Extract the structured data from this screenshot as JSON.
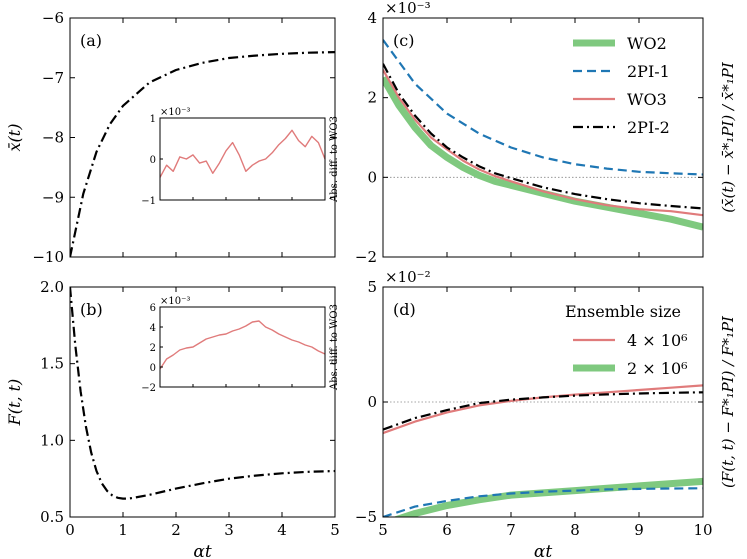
{
  "chart_data": [
    {
      "id": "a",
      "type": "line",
      "panel_label": "(a)",
      "xlabel": "αt",
      "ylabel": "x̄(t)",
      "xlim": [
        0,
        5
      ],
      "ylim": [
        -10,
        -6
      ],
      "xticks": [
        0,
        1,
        2,
        3,
        4,
        5
      ],
      "yticks": [
        -10,
        -9,
        -8,
        -7,
        -6
      ],
      "ytick_labels": [
        "−10",
        "−9",
        "−8",
        "−7",
        "−6"
      ],
      "series": [
        {
          "name": "mean",
          "color": "#000000",
          "dash": "dashdot",
          "x": [
            0,
            0.25,
            0.5,
            0.75,
            1,
            1.5,
            2,
            2.5,
            3,
            3.5,
            4,
            4.5,
            5
          ],
          "y": [
            -10,
            -8.94,
            -8.24,
            -7.78,
            -7.47,
            -7.08,
            -6.87,
            -6.75,
            -6.67,
            -6.63,
            -6.6,
            -6.58,
            -6.57
          ]
        }
      ],
      "inset": {
        "ylabel": "Abs. diff. to WO3",
        "exponent": "×10⁻³",
        "ylim": [
          -1,
          1
        ],
        "yticks": [
          -1,
          0,
          1
        ],
        "ytick_labels": [
          "−1",
          "0",
          "1"
        ],
        "color": "#e07b7b",
        "x": [
          0,
          0.2,
          0.4,
          0.6,
          0.8,
          1.0,
          1.2,
          1.4,
          1.6,
          1.8,
          2.0,
          2.2,
          2.4,
          2.6,
          2.8,
          3.0,
          3.2,
          3.4,
          3.6,
          3.8,
          4.0,
          4.2,
          4.4,
          4.6,
          4.8,
          5.0
        ],
        "y": [
          -0.45,
          -0.15,
          -0.3,
          0.05,
          0.0,
          0.1,
          -0.1,
          -0.05,
          -0.35,
          -0.1,
          0.2,
          0.4,
          0.1,
          -0.3,
          -0.15,
          -0.05,
          0.0,
          0.15,
          0.35,
          0.5,
          0.7,
          0.45,
          0.3,
          0.55,
          0.4,
          0.0
        ]
      }
    },
    {
      "id": "b",
      "type": "line",
      "panel_label": "(b)",
      "xlabel": "αt",
      "ylabel": "F(t, t)",
      "xlim": [
        0,
        5
      ],
      "ylim": [
        0.5,
        2.0
      ],
      "xticks": [
        0,
        1,
        2,
        3,
        4,
        5
      ],
      "yticks": [
        0.5,
        1.0,
        1.5,
        2.0
      ],
      "ytick_labels": [
        "0.5",
        "1.0",
        "1.5",
        "2.0"
      ],
      "series": [
        {
          "name": "F",
          "color": "#000000",
          "dash": "dashdot",
          "x": [
            0,
            0.1,
            0.2,
            0.3,
            0.4,
            0.5,
            0.6,
            0.7,
            0.8,
            0.9,
            1.0,
            1.1,
            1.2,
            1.5,
            2.0,
            2.5,
            3.0,
            3.5,
            4.0,
            4.5,
            5.0
          ],
          "y": [
            2.0,
            1.62,
            1.32,
            1.09,
            0.92,
            0.8,
            0.72,
            0.67,
            0.64,
            0.625,
            0.62,
            0.62,
            0.625,
            0.645,
            0.685,
            0.72,
            0.75,
            0.77,
            0.785,
            0.795,
            0.8
          ]
        }
      ],
      "inset": {
        "ylabel": "Abs. diff. to WO3",
        "exponent": "×10⁻³",
        "ylim": [
          -2,
          6
        ],
        "yticks": [
          -2,
          0,
          2,
          4,
          6
        ],
        "ytick_labels": [
          "−2",
          "0",
          "2",
          "4",
          "6"
        ],
        "color": "#e07b7b",
        "x": [
          0,
          0.2,
          0.4,
          0.6,
          0.8,
          1.0,
          1.2,
          1.4,
          1.6,
          1.8,
          2.0,
          2.2,
          2.4,
          2.6,
          2.8,
          3.0,
          3.2,
          3.4,
          3.6,
          3.8,
          4.0,
          4.2,
          4.4,
          4.6,
          4.8,
          5.0
        ],
        "y": [
          -0.2,
          0.8,
          1.2,
          1.7,
          1.9,
          2.0,
          2.4,
          2.8,
          3.0,
          3.2,
          3.3,
          3.6,
          3.8,
          4.1,
          4.5,
          4.6,
          4.0,
          3.7,
          3.3,
          3.0,
          2.7,
          2.5,
          2.2,
          2.0,
          1.6,
          1.3
        ]
      }
    },
    {
      "id": "c",
      "type": "line",
      "panel_label": "(c)",
      "xlabel": "αt",
      "ylabel": "(x̄(t) − x̄*₁PI) / x̄*₁PI",
      "exponent": "×10⁻³",
      "xlim": [
        5,
        10
      ],
      "ylim": [
        -2,
        4
      ],
      "xticks": [
        5,
        6,
        7,
        8,
        9,
        10
      ],
      "yticks": [
        -2,
        0,
        2,
        4
      ],
      "ytick_labels": [
        "−2",
        "0",
        "2",
        "4"
      ],
      "legend_position": "top-right",
      "series": [
        {
          "name": "WO2",
          "color": "#7fc97f",
          "dash": "solid",
          "width": 7,
          "x": [
            5.0,
            5.25,
            5.5,
            5.75,
            6.0,
            6.25,
            6.5,
            6.75,
            7.0,
            7.5,
            8.0,
            8.5,
            9.0,
            9.5,
            10.0
          ],
          "y": [
            2.5,
            1.8,
            1.25,
            0.8,
            0.5,
            0.25,
            0.05,
            -0.1,
            -0.2,
            -0.4,
            -0.6,
            -0.75,
            -0.9,
            -1.05,
            -1.25
          ]
        },
        {
          "name": "2PI-1",
          "color": "#1f77b4",
          "dash": "dashed",
          "width": 2.2,
          "x": [
            5.0,
            5.5,
            6.0,
            6.5,
            7.0,
            7.5,
            8.0,
            8.5,
            9.0,
            9.5,
            10.0
          ],
          "y": [
            3.45,
            2.35,
            1.6,
            1.1,
            0.75,
            0.5,
            0.33,
            0.22,
            0.14,
            0.1,
            0.07
          ]
        },
        {
          "name": "WO3",
          "color": "#e07b7b",
          "dash": "solid",
          "width": 2.2,
          "x": [
            5.0,
            5.25,
            5.5,
            5.75,
            6.0,
            6.25,
            6.5,
            6.75,
            7.0,
            7.5,
            8.0,
            8.5,
            9.0,
            9.5,
            10.0
          ],
          "y": [
            2.7,
            2.0,
            1.45,
            1.0,
            0.7,
            0.42,
            0.2,
            0.03,
            -0.1,
            -0.35,
            -0.55,
            -0.7,
            -0.8,
            -0.85,
            -0.95
          ]
        },
        {
          "name": "2PI-2",
          "color": "#000000",
          "dash": "dashdot",
          "width": 2.2,
          "x": [
            5.0,
            5.25,
            5.5,
            5.75,
            6.0,
            6.25,
            6.5,
            6.75,
            7.0,
            7.5,
            8.0,
            8.5,
            9.0,
            9.5,
            10.0
          ],
          "y": [
            2.85,
            2.1,
            1.55,
            1.1,
            0.75,
            0.5,
            0.28,
            0.1,
            -0.02,
            -0.25,
            -0.42,
            -0.55,
            -0.65,
            -0.72,
            -0.78
          ]
        }
      ]
    },
    {
      "id": "d",
      "type": "line",
      "panel_label": "(d)",
      "xlabel": "αt",
      "ylabel": "(F(t, t) − F*₁PI) / F*₁PI",
      "exponent": "×10⁻²",
      "xlim": [
        5,
        10
      ],
      "ylim": [
        -5,
        5
      ],
      "xticks": [
        5,
        6,
        7,
        8,
        9,
        10
      ],
      "xtick_labels": [
        "5",
        "6",
        "7",
        "8",
        "9",
        "10"
      ],
      "yticks": [
        -5,
        0,
        5
      ],
      "ytick_labels": [
        "−5",
        "0",
        "5"
      ],
      "legend_title": "Ensemble size",
      "legend_position": "top-right",
      "series": [
        {
          "name": "4 × 10⁶",
          "color": "#e07b7b",
          "dash": "solid",
          "width": 2.2,
          "x": [
            5.0,
            5.5,
            6.0,
            6.5,
            7.0,
            7.5,
            8.0,
            8.5,
            9.0,
            9.5,
            10.0
          ],
          "y": [
            -1.35,
            -0.85,
            -0.45,
            -0.15,
            0.05,
            0.2,
            0.32,
            0.42,
            0.52,
            0.62,
            0.72
          ]
        },
        {
          "name": "2 × 10⁶",
          "color": "#7fc97f",
          "dash": "solid",
          "width": 7,
          "x": [
            5.0,
            5.5,
            6.0,
            6.5,
            7.0,
            7.5,
            8.0,
            8.5,
            9.0,
            9.5,
            10.0
          ],
          "y": [
            -5.3,
            -4.85,
            -4.5,
            -4.25,
            -4.05,
            -3.95,
            -3.85,
            -3.75,
            -3.65,
            -3.55,
            -3.45
          ]
        },
        {
          "name": "2PI-2",
          "color": "#000000",
          "dash": "dashdot",
          "width": 2.2,
          "in_legend": false,
          "x": [
            5.0,
            5.5,
            6.0,
            6.5,
            7.0,
            7.5,
            8.0,
            8.5,
            9.0,
            9.5,
            10.0
          ],
          "y": [
            -1.2,
            -0.7,
            -0.35,
            -0.05,
            0.1,
            0.2,
            0.28,
            0.33,
            0.37,
            0.4,
            0.42
          ]
        },
        {
          "name": "2PI-1",
          "color": "#1f77b4",
          "dash": "dashed",
          "width": 2.2,
          "in_legend": false,
          "x": [
            5.0,
            5.5,
            6.0,
            6.5,
            7.0,
            7.5,
            8.0,
            8.5,
            9.0,
            9.5,
            10.0
          ],
          "y": [
            -5.0,
            -4.55,
            -4.3,
            -4.1,
            -3.98,
            -3.9,
            -3.85,
            -3.8,
            -3.78,
            -3.76,
            -3.75
          ]
        }
      ]
    }
  ]
}
